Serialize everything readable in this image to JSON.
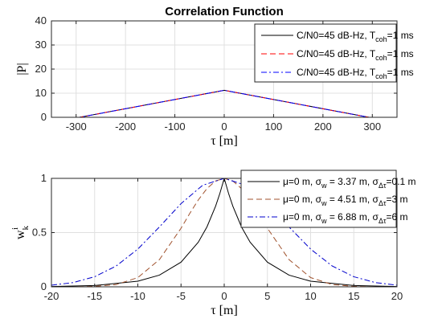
{
  "chart_data": [
    {
      "type": "line",
      "title": "Correlation Function",
      "xlabel": "τ [m]",
      "ylabel": "|P|",
      "xlim": [
        -350,
        350
      ],
      "ylim": [
        0,
        40
      ],
      "xticks": [
        -300,
        -200,
        -100,
        0,
        100,
        200,
        300
      ],
      "yticks": [
        0,
        10,
        20,
        30,
        40
      ],
      "grid": true,
      "legend_position": "top-right",
      "series": [
        {
          "name": "C/N0=45 dB-Hz, T_coh=1 ms",
          "legend_main": "C/N0=45 dB-Hz, T",
          "legend_sub": "coh",
          "legend_tail": "=1 ms",
          "color": "#000000",
          "dash": "solid",
          "x": [
            -350,
            -293,
            0,
            293,
            350
          ],
          "y": [
            0,
            0,
            11.2,
            0,
            0
          ]
        },
        {
          "name": "C/N0=45 dB-Hz, T_coh=1 ms",
          "legend_main": "C/N0=45 dB-Hz, T",
          "legend_sub": "coh",
          "legend_tail": "=1 ms",
          "color": "#ff0000",
          "dash": "dashed",
          "x": [
            -350,
            -293,
            0,
            293,
            350
          ],
          "y": [
            0,
            0,
            11.2,
            0,
            0
          ]
        },
        {
          "name": "C/N0=45 dB-Hz, T_coh=1 ms",
          "legend_main": "C/N0=45 dB-Hz, T",
          "legend_sub": "coh",
          "legend_tail": "=1 ms",
          "color": "#0000ff",
          "dash": "dashdot",
          "x": [
            -350,
            -293,
            0,
            293,
            350
          ],
          "y": [
            0,
            0,
            11.2,
            0,
            0
          ]
        }
      ]
    },
    {
      "type": "line",
      "xlabel": "τ [m]",
      "ylabel": "w_k^i",
      "xlim": [
        -20,
        20
      ],
      "ylim": [
        0,
        1
      ],
      "xticks": [
        -20,
        -15,
        -10,
        -5,
        0,
        5,
        10,
        15,
        20
      ],
      "yticks": [
        0,
        0.5,
        1
      ],
      "grid": true,
      "legend_position": "top-right",
      "series": [
        {
          "name": "μ=0 m, σ_w = 3.37 m, σ_Δτ=0.1 m",
          "legend_parts": [
            "μ=0 m, σ",
            "w",
            " = 3.37 m, σ",
            "Δτ",
            "=0.1 m"
          ],
          "color": "#000000",
          "dash": "solid",
          "x": [
            -20,
            -15,
            -10,
            -7.5,
            -5,
            -3,
            -2,
            -1,
            -0.5,
            0,
            0.5,
            1,
            2,
            3,
            5,
            7.5,
            10,
            15,
            20
          ],
          "y": [
            0.003,
            0.012,
            0.052,
            0.108,
            0.227,
            0.411,
            0.552,
            0.743,
            0.862,
            1,
            0.862,
            0.743,
            0.552,
            0.411,
            0.227,
            0.108,
            0.052,
            0.012,
            0.003
          ]
        },
        {
          "name": "μ=0 m, σ_w = 4.51 m, σ_Δτ=3 m",
          "legend_parts": [
            "μ=0 m, σ",
            "w",
            " = 4.51 m, σ",
            "Δτ",
            "=3 m"
          ],
          "color": "#a0522d",
          "dash": "dashed",
          "x": [
            -20,
            -17.5,
            -15,
            -12.5,
            -10,
            -7.5,
            -5,
            -4,
            -3,
            -2,
            -1,
            0,
            1,
            2,
            3,
            4,
            5,
            7.5,
            10,
            12.5,
            15,
            17.5,
            20
          ],
          "y": [
            0,
            0,
            0.004,
            0.021,
            0.085,
            0.251,
            0.54,
            0.675,
            0.801,
            0.906,
            0.976,
            1,
            0.976,
            0.906,
            0.801,
            0.675,
            0.54,
            0.251,
            0.085,
            0.021,
            0.004,
            0,
            0
          ]
        },
        {
          "name": "μ=0 m, σ_w = 6.88 m, σ_Δτ=6 m",
          "legend_parts": [
            "μ=0 m, σ",
            "w",
            " = 6.88 m, σ",
            "Δτ",
            "=6 m"
          ],
          "color": "#0000cc",
          "dash": "dashdot",
          "x": [
            -20,
            -17.5,
            -15,
            -12.5,
            -10,
            -7.5,
            -5,
            -2.5,
            0,
            2.5,
            5,
            7.5,
            10,
            12.5,
            15,
            17.5,
            20
          ],
          "y": [
            0.015,
            0.039,
            0.093,
            0.192,
            0.348,
            0.552,
            0.767,
            0.936,
            1,
            0.936,
            0.767,
            0.552,
            0.348,
            0.192,
            0.093,
            0.039,
            0.015
          ]
        }
      ]
    }
  ]
}
